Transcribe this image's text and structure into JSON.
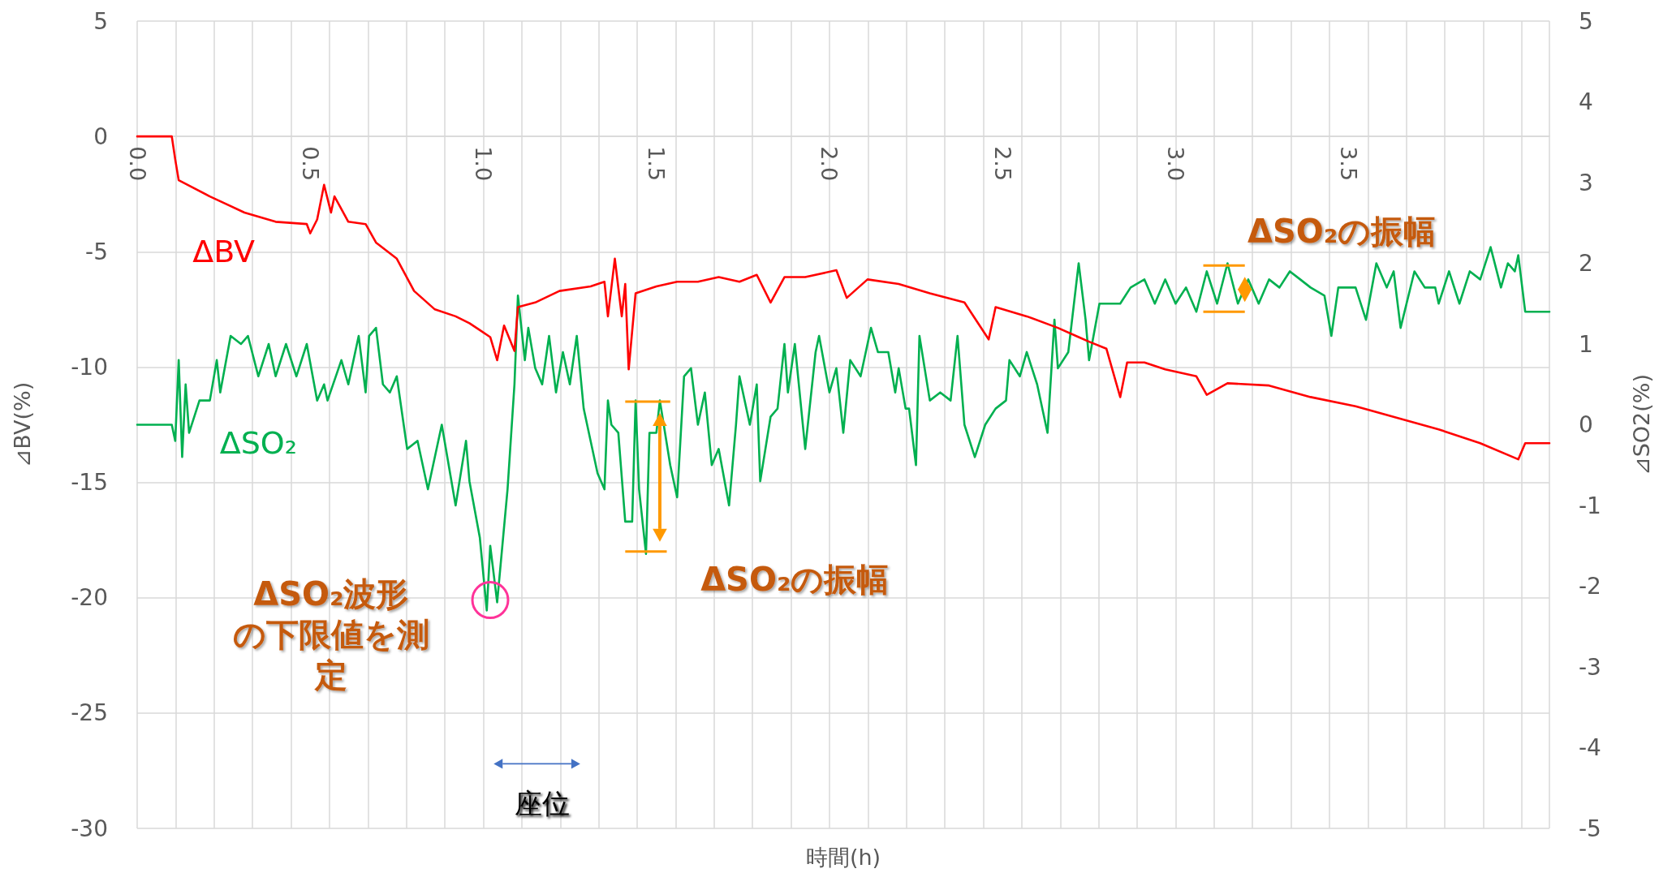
{
  "chart_data": {
    "type": "line",
    "xlabel": "時間(h)",
    "ylabel": "⊿BV(%)",
    "y2label": "⊿SO2(%)",
    "xlim": [
      0,
      4.08
    ],
    "xticks": [
      {
        "value": 0,
        "label": "0.0"
      },
      0.5,
      {
        "value": 1,
        "label": "1.0"
      },
      1.5,
      {
        "value": 2,
        "label": "2.0"
      },
      2.5,
      {
        "value": 3,
        "label": "3.0"
      },
      3.5,
      {
        "value": 0.111,
        "label": null
      },
      {
        "value": 0.222,
        "label": null
      },
      {
        "value": 0.333,
        "label": null
      },
      {
        "value": 0.444,
        "label": null
      },
      {
        "value": 0.556,
        "label": null
      },
      {
        "value": 0.667,
        "label": null
      },
      {
        "value": 0.778,
        "label": null
      },
      {
        "value": 0.889,
        "label": null
      },
      {
        "value": 1.0,
        "label": null
      },
      {
        "value": 1.111,
        "label": null
      },
      {
        "value": 1.222,
        "label": null
      },
      {
        "value": 1.333,
        "label": null
      },
      {
        "value": 1.444,
        "label": null
      },
      {
        "value": 1.556,
        "label": null
      },
      {
        "value": 1.667,
        "label": null
      },
      {
        "value": 1.778,
        "label": null
      },
      {
        "value": 1.889,
        "label": null
      },
      {
        "value": 2.0,
        "label": null
      },
      {
        "value": 2.111,
        "label": null
      },
      {
        "value": 2.222,
        "label": null
      },
      {
        "value": 2.333,
        "label": null
      },
      {
        "value": 2.444,
        "label": null
      },
      {
        "value": 2.556,
        "label": null
      },
      {
        "value": 2.667,
        "label": null
      },
      {
        "value": 2.778,
        "label": null
      },
      {
        "value": 2.889,
        "label": null
      },
      {
        "value": 3.0,
        "label": null
      },
      {
        "value": 3.111,
        "label": null
      },
      {
        "value": 3.222,
        "label": null
      },
      {
        "value": 3.333,
        "label": null
      },
      {
        "value": 3.444,
        "label": null
      },
      {
        "value": 3.556,
        "label": null
      },
      {
        "value": 3.667,
        "label": null
      },
      {
        "value": 3.778,
        "label": null
      },
      {
        "value": 3.889,
        "label": null
      },
      {
        "value": 4.0,
        "label": null
      }
    ],
    "ylim": [
      -30,
      5
    ],
    "yticks": [
      -30,
      -25,
      -20,
      -15,
      -10,
      -5,
      0,
      5
    ],
    "y2lim": [
      -5,
      5
    ],
    "y2ticks": [
      -5,
      -4,
      -3,
      -2,
      -1,
      0,
      1,
      2,
      3,
      4,
      5
    ],
    "grid": true,
    "marker": "none",
    "annotations": [
      "ΔSO₂の振幅",
      "ΔSO₂の振幅",
      "ΔSO₂波形の下限値を測定",
      "座位"
    ],
    "series": [
      {
        "name": "ΔBV",
        "color": "#ff0000",
        "x": [
          0,
          0.1,
          0.11,
          0.12,
          0.21,
          0.31,
          0.4,
          0.49,
          0.5,
          0.52,
          0.54,
          0.56,
          0.57,
          0.61,
          0.66,
          0.69,
          0.75,
          0.8,
          0.86,
          0.92,
          0.96,
          0.99,
          1.02,
          1.04,
          1.06,
          1.09,
          1.1,
          1.15,
          1.22,
          1.31,
          1.35,
          1.36,
          1.38,
          1.4,
          1.41,
          1.42,
          1.44,
          1.5,
          1.56,
          1.62,
          1.68,
          1.74,
          1.79,
          1.83,
          1.87,
          1.93,
          2.02,
          2.05,
          2.11,
          2.2,
          2.29,
          2.39,
          2.46,
          2.48,
          2.57,
          2.66,
          2.72,
          2.75,
          2.8,
          2.84,
          2.86,
          2.91,
          2.97,
          3.06,
          3.09,
          3.15,
          3.27,
          3.39,
          3.52,
          3.64,
          3.76,
          3.88,
          3.99,
          4.01,
          4.08
        ],
        "values": [
          0,
          0,
          -1.0,
          -1.9,
          -2.6,
          -3.3,
          -3.7,
          -3.8,
          -4.2,
          -3.6,
          -2.1,
          -3.3,
          -2.6,
          -3.7,
          -3.8,
          -4.6,
          -5.3,
          -6.7,
          -7.5,
          -7.8,
          -8.1,
          -8.4,
          -8.7,
          -9.7,
          -8.2,
          -9.3,
          -7.4,
          -7.2,
          -6.7,
          -6.5,
          -6.3,
          -7.8,
          -5.3,
          -7.8,
          -6.4,
          -10.1,
          -6.8,
          -6.5,
          -6.3,
          -6.3,
          -6.1,
          -6.3,
          -6.0,
          -7.2,
          -6.1,
          -6.1,
          -5.8,
          -7.0,
          -6.2,
          -6.4,
          -6.8,
          -7.2,
          -8.8,
          -7.4,
          -7.8,
          -8.3,
          -8.7,
          -8.9,
          -9.2,
          -11.3,
          -9.8,
          -9.8,
          -10.1,
          -10.4,
          -11.2,
          -10.7,
          -10.8,
          -11.3,
          -11.7,
          -12.2,
          -12.7,
          -13.3,
          -14.0,
          -13.3,
          -13.3
        ]
      },
      {
        "name": "ΔSO₂",
        "color": "#00b050",
        "axis": "y2",
        "x": [
          0,
          0.1,
          0.11,
          0.12,
          0.13,
          0.14,
          0.15,
          0.18,
          0.21,
          0.23,
          0.24,
          0.27,
          0.3,
          0.32,
          0.35,
          0.38,
          0.4,
          0.43,
          0.46,
          0.49,
          0.52,
          0.54,
          0.55,
          0.59,
          0.61,
          0.64,
          0.66,
          0.67,
          0.69,
          0.71,
          0.73,
          0.75,
          0.78,
          0.81,
          0.84,
          0.88,
          0.92,
          0.95,
          0.96,
          0.99,
          1.01,
          1.02,
          1.04,
          1.07,
          1.09,
          1.1,
          1.12,
          1.13,
          1.15,
          1.17,
          1.19,
          1.21,
          1.23,
          1.25,
          1.27,
          1.29,
          1.31,
          1.33,
          1.35,
          1.36,
          1.37,
          1.39,
          1.41,
          1.43,
          1.44,
          1.45,
          1.47,
          1.48,
          1.5,
          1.51,
          1.54,
          1.56,
          1.58,
          1.6,
          1.62,
          1.64,
          1.66,
          1.68,
          1.71,
          1.73,
          1.74,
          1.77,
          1.79,
          1.8,
          1.83,
          1.85,
          1.87,
          1.88,
          1.9,
          1.93,
          1.96,
          1.97,
          2.0,
          2.02,
          2.04,
          2.06,
          2.09,
          2.12,
          2.14,
          2.17,
          2.19,
          2.2,
          2.22,
          2.23,
          2.25,
          2.26,
          2.29,
          2.32,
          2.35,
          2.37,
          2.39,
          2.42,
          2.45,
          2.48,
          2.51,
          2.52,
          2.55,
          2.57,
          2.6,
          2.63,
          2.65,
          2.66,
          2.69,
          2.72,
          2.74,
          2.75,
          2.78,
          2.81,
          2.84,
          2.87,
          2.91,
          2.94,
          2.97,
          3.0,
          3.03,
          3.06,
          3.09,
          3.12,
          3.15,
          3.18,
          3.21,
          3.24,
          3.27,
          3.3,
          3.33,
          3.36,
          3.39,
          3.43,
          3.45,
          3.47,
          3.5,
          3.52,
          3.55,
          3.58,
          3.61,
          3.63,
          3.65,
          3.69,
          3.72,
          3.75,
          3.76,
          3.79,
          3.82,
          3.85,
          3.88,
          3.91,
          3.94,
          3.96,
          3.98,
          3.99,
          4.01,
          4.08
        ],
        "values": [
          0,
          0,
          -0.2,
          0.8,
          -0.4,
          0.5,
          -0.1,
          0.3,
          0.3,
          0.8,
          0.4,
          1.1,
          1.0,
          1.1,
          0.6,
          1.0,
          0.6,
          1.0,
          0.6,
          1.0,
          0.3,
          0.5,
          0.3,
          0.8,
          0.5,
          1.1,
          0.4,
          1.1,
          1.2,
          0.5,
          0.4,
          0.6,
          -0.3,
          -0.2,
          -0.8,
          0.0,
          -1.0,
          -0.2,
          -0.7,
          -1.4,
          -2.3,
          -1.5,
          -2.2,
          -0.8,
          0.5,
          1.6,
          0.8,
          1.2,
          0.7,
          0.5,
          1.1,
          0.4,
          0.9,
          0.5,
          1.1,
          0.2,
          -0.2,
          -0.6,
          -0.8,
          0.3,
          0.0,
          -0.1,
          -1.2,
          -1.2,
          0.3,
          -0.8,
          -1.6,
          -0.1,
          -0.1,
          0.3,
          -0.5,
          -0.9,
          0.6,
          0.7,
          0.0,
          0.4,
          -0.5,
          -0.3,
          -1.0,
          0.0,
          0.6,
          0.0,
          0.5,
          -0.7,
          0.1,
          0.2,
          1.0,
          0.4,
          1.0,
          -0.3,
          0.9,
          1.1,
          0.4,
          0.7,
          -0.1,
          0.8,
          0.6,
          1.2,
          0.9,
          0.9,
          0.4,
          0.7,
          0.2,
          0.2,
          -0.5,
          1.1,
          0.3,
          0.4,
          0.3,
          1.1,
          0.0,
          -0.4,
          0.0,
          0.2,
          0.3,
          0.8,
          0.6,
          0.9,
          0.5,
          -0.1,
          1.3,
          0.7,
          0.9,
          2.0,
          1.3,
          0.8,
          1.5,
          1.5,
          1.5,
          1.7,
          1.8,
          1.5,
          1.8,
          1.5,
          1.7,
          1.4,
          1.9,
          1.5,
          2.0,
          1.5,
          1.8,
          1.5,
          1.8,
          1.7,
          1.9,
          1.8,
          1.7,
          1.6,
          1.1,
          1.7,
          1.7,
          1.7,
          1.3,
          2.0,
          1.7,
          1.9,
          1.2,
          1.9,
          1.7,
          1.7,
          1.5,
          1.9,
          1.5,
          1.9,
          1.8,
          2.2,
          1.7,
          2.0,
          1.9,
          2.1,
          1.4,
          1.4
        ]
      }
    ]
  }
}
